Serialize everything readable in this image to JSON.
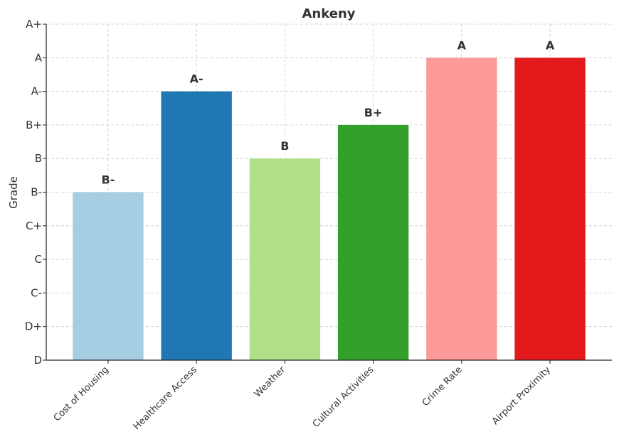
{
  "chart_data": {
    "type": "bar",
    "title": "Ankeny",
    "xlabel": "",
    "ylabel": "Grade",
    "grade_scale": [
      "D",
      "D+",
      "C-",
      "C",
      "C+",
      "B-",
      "B",
      "B+",
      "A-",
      "A",
      "A+"
    ],
    "categories": [
      "Cost of Housing",
      "Healthcare Access",
      "Weather",
      "Cultural Activities",
      "Crime Rate",
      "Airport Proximity"
    ],
    "values": [
      5,
      8,
      6,
      7,
      9,
      9
    ],
    "value_labels": [
      "B-",
      "A-",
      "B",
      "B+",
      "A",
      "A"
    ],
    "colors": [
      "#a6cee3",
      "#1f78b4",
      "#b2df8a",
      "#33a02c",
      "#fb9a99",
      "#e31a1c"
    ],
    "ylim": [
      0,
      10
    ],
    "grid": true
  }
}
